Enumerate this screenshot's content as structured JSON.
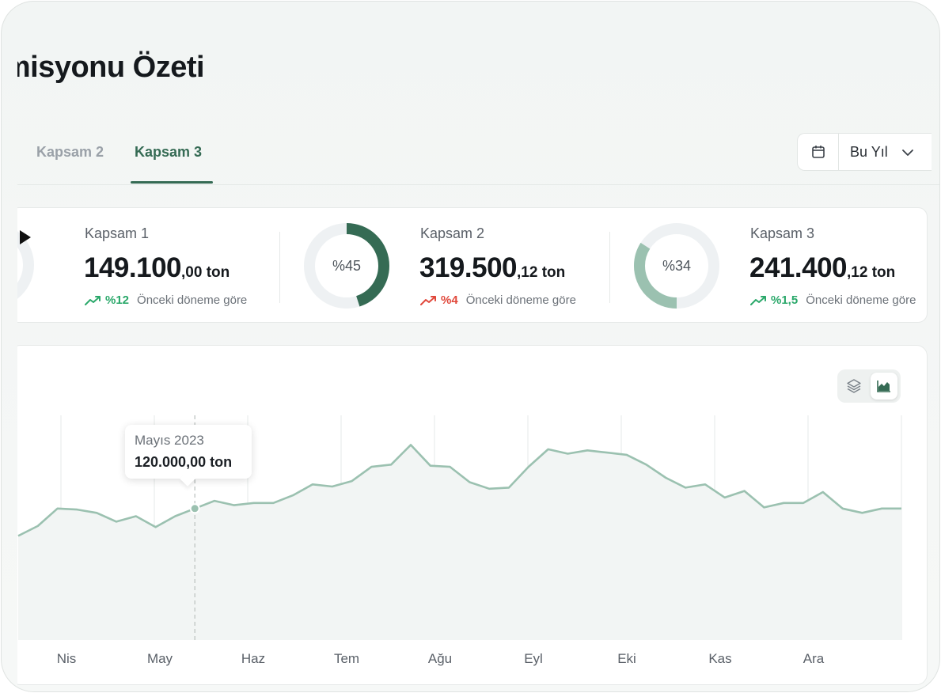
{
  "page": {
    "title": "Emisyonu Özeti"
  },
  "tabs": [
    {
      "label": "Kapsam 2",
      "active": false
    },
    {
      "label": "Kapsam 3",
      "active": true
    }
  ],
  "period_select": {
    "value": "Bu Yıl",
    "icon": "calendar-icon"
  },
  "cards": [
    {
      "label": "Kapsam 1",
      "value_main": "149.100",
      "value_suffix": ",00 ton",
      "change": "%12",
      "direction": "up",
      "note": "Önceki döneme göre"
    },
    {
      "label": "Kapsam 2",
      "percent_label": "%45",
      "percent": 45,
      "value_main": "319.500",
      "value_suffix": ",12 ton",
      "change": "%4",
      "direction": "down",
      "note": "Önceki döneme göre"
    },
    {
      "label": "Kapsam 3",
      "percent_label": "%34",
      "percent": 34,
      "value_main": "241.400",
      "value_suffix": ",12 ton",
      "change": "%1,5",
      "direction": "up",
      "note": "Önceki döneme göre"
    }
  ],
  "colors": {
    "accent": "#356b54",
    "donut_dark": "#356b54",
    "donut_light": "#9bc1b0",
    "up": "#2aa86a",
    "down": "#e0473a",
    "line": "#9bc1b0"
  },
  "chart_toggle": {
    "options": [
      "layers-icon",
      "area-chart-icon"
    ],
    "selected": "area-chart-icon"
  },
  "chart_data": {
    "type": "area",
    "x_ticks": [
      "Nis",
      "May",
      "Haz",
      "Tem",
      "Ağu",
      "Eyl",
      "Eki",
      "Kas",
      "Ara"
    ],
    "series": [
      {
        "values": [
          95000,
          104000,
          120000,
          119000,
          116000,
          108000,
          113000,
          103000,
          113000,
          120000,
          127000,
          123000,
          125000,
          125000,
          132000,
          142000,
          140000,
          145000,
          158000,
          160000,
          178000,
          159000,
          158000,
          144000,
          138000,
          139000,
          158000,
          174000,
          170000,
          173000,
          171000,
          169000,
          160000,
          148000,
          139000,
          142000,
          130000,
          136000,
          121000,
          125000,
          125000,
          135000,
          120000,
          116000,
          120000,
          120000
        ]
      }
    ],
    "y_range": [
      0,
      205000
    ],
    "tooltip": {
      "date": "Mayıs 2023",
      "value": "120.000,00 ton"
    },
    "grid": "vertical"
  }
}
